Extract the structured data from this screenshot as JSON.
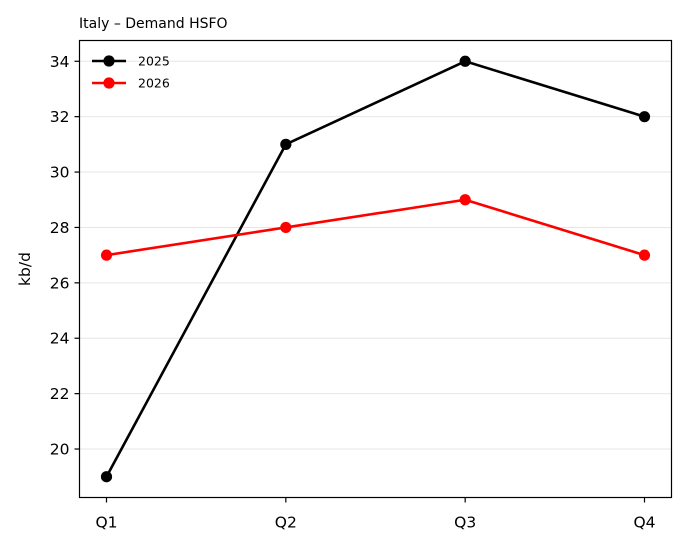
{
  "chart_data": {
    "type": "line",
    "title": "Italy – Demand HSFO",
    "ylabel": "kb/d",
    "xlabel": "",
    "categories": [
      "Q1",
      "Q2",
      "Q3",
      "Q4"
    ],
    "series": [
      {
        "name": "2025",
        "values": [
          19,
          31,
          34,
          32
        ],
        "color": "#000000"
      },
      {
        "name": "2026",
        "values": [
          27,
          28,
          29,
          27
        ],
        "color": "#ff0000"
      }
    ],
    "ylim": [
      18.25,
      34.75
    ],
    "yticks": [
      "20",
      "22",
      "24",
      "26",
      "28",
      "30",
      "32",
      "34"
    ],
    "grid": "horizontal",
    "legend_position": "top-left"
  }
}
